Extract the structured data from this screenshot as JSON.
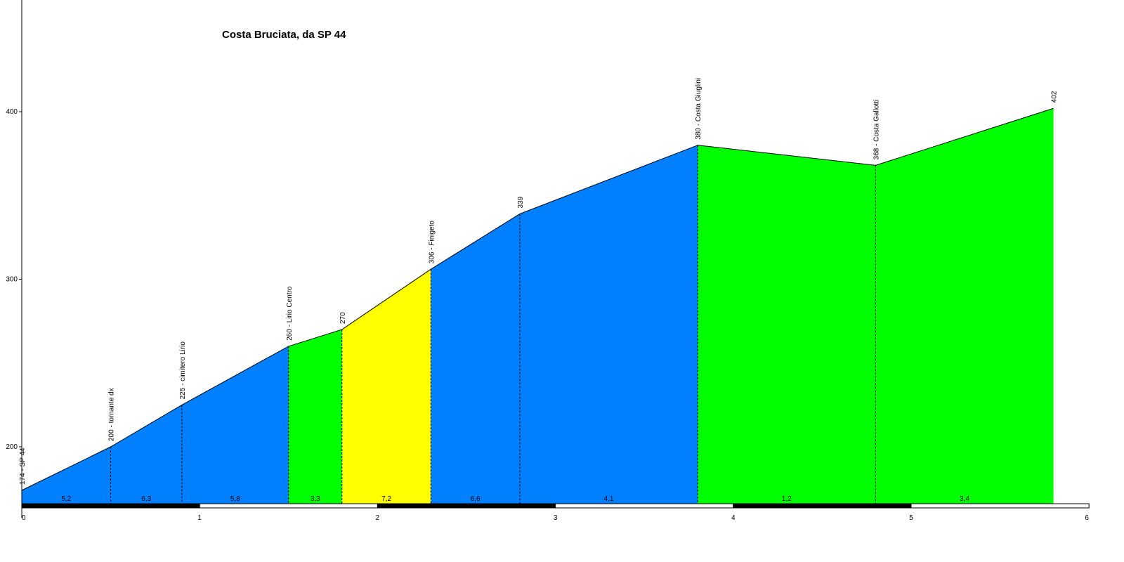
{
  "chart_data": {
    "type": "area",
    "title": "Costa Bruciata, da SP 44",
    "xlabel": "",
    "ylabel": "",
    "x_ticks": [
      "0",
      "1",
      "2",
      "3",
      "4",
      "5",
      "6"
    ],
    "y_ticks": [
      "200",
      "300",
      "400"
    ],
    "xlim": [
      0,
      6
    ],
    "ylim": [
      165,
      465
    ],
    "points": [
      {
        "x": 0.0,
        "y": 174,
        "label": "174 - SP 44"
      },
      {
        "x": 0.5,
        "y": 200,
        "label": "200 - tornante dx"
      },
      {
        "x": 0.9,
        "y": 225,
        "label": "225 - cimitero Lirio"
      },
      {
        "x": 1.5,
        "y": 260,
        "label": "260 - Lirio Centro"
      },
      {
        "x": 1.8,
        "y": 270,
        "label": "270"
      },
      {
        "x": 2.3,
        "y": 306,
        "label": "306 - Finigeto"
      },
      {
        "x": 2.8,
        "y": 339,
        "label": "339"
      },
      {
        "x": 3.8,
        "y": 380,
        "label": "380 - Costa Giuglini"
      },
      {
        "x": 4.8,
        "y": 368,
        "label": "368 - Costa Gallotti"
      },
      {
        "x": 5.8,
        "y": 402,
        "label": "402"
      }
    ],
    "segments": [
      {
        "gradient": "5,2",
        "color": "#0080ff"
      },
      {
        "gradient": "6,3",
        "color": "#0080ff"
      },
      {
        "gradient": "5,8",
        "color": "#0080ff"
      },
      {
        "gradient": "3,3",
        "color": "#00ff00"
      },
      {
        "gradient": "7,2",
        "color": "#ffff00"
      },
      {
        "gradient": "6,6",
        "color": "#0080ff"
      },
      {
        "gradient": "4,1",
        "color": "#0080ff"
      },
      {
        "gradient": "1,2",
        "color": "#00ff00"
      },
      {
        "gradient": "3,4",
        "color": "#00ff00"
      }
    ],
    "grid": false,
    "legend": "none"
  }
}
